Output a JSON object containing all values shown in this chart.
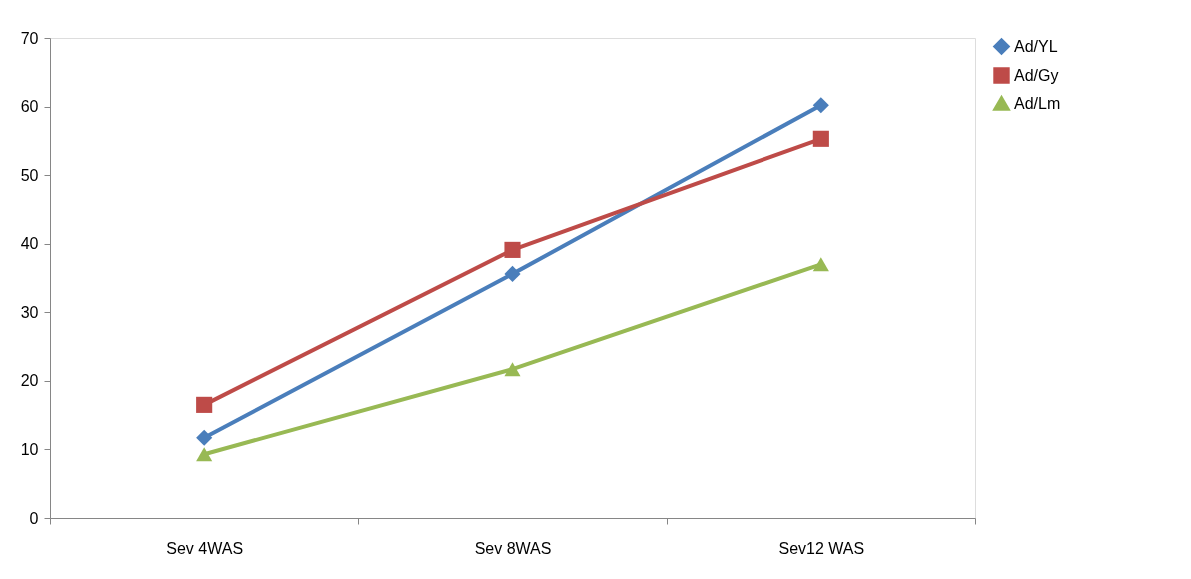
{
  "chart_data": {
    "type": "line",
    "categories": [
      "Sev 4WAS",
      "Sev 8WAS",
      "Sev12 WAS"
    ],
    "series": [
      {
        "name": "Ad/YL",
        "color": "#4a7ebb",
        "marker": "diamond",
        "values": [
          11.7,
          35.6,
          60.2
        ]
      },
      {
        "name": "Ad/Gy",
        "color": "#be4b48",
        "marker": "square",
        "values": [
          16.5,
          39.1,
          55.3
        ]
      },
      {
        "name": "Ad/Lm",
        "color": "#98b954",
        "marker": "triangle",
        "values": [
          9.3,
          21.7,
          37.0
        ]
      }
    ],
    "ylim": [
      0,
      70
    ],
    "yticks": [
      0,
      10,
      20,
      30,
      40,
      50,
      60,
      70
    ],
    "grid": false,
    "legend": "right",
    "line_style": "solid"
  }
}
